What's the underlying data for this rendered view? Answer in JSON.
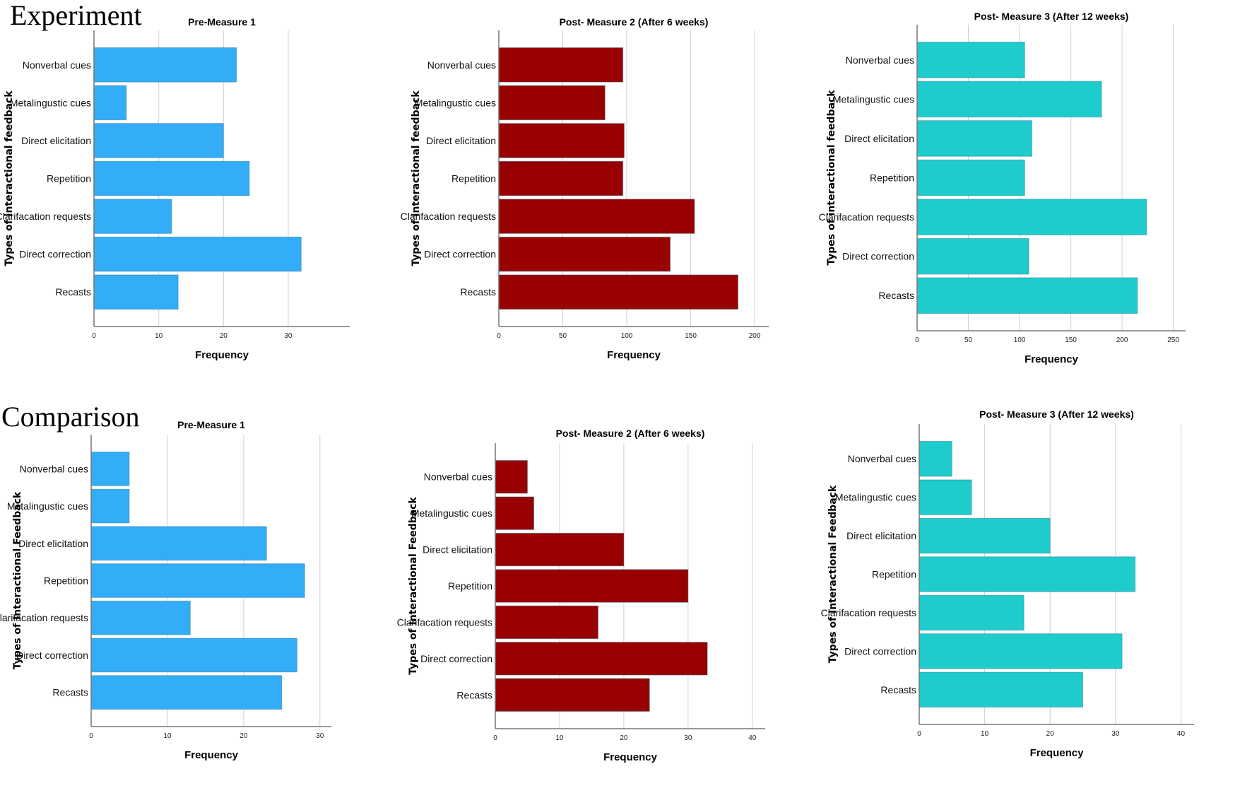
{
  "groups": {
    "experiment": "Experiment",
    "comparison": "Comparison"
  },
  "colors": {
    "pre": "#33adf8",
    "post2": "#990000",
    "post3": "#1fcccc",
    "grid": "#d0d0d0",
    "axis": "#777777"
  },
  "chart_data": [
    {
      "type": "bar",
      "orientation": "horizontal",
      "group": "Experiment",
      "title": "Pre-Measure 1",
      "xlabel": "Frequency",
      "ylabel": "Types of interactional feedback",
      "categories": [
        "Nonverbal cues",
        "Metalingustic cues",
        "Direct elicitation",
        "Repetition",
        "Clarifacation requests",
        "Direct correction",
        "Recasts"
      ],
      "values": [
        22,
        5,
        20,
        24,
        12,
        32,
        13
      ],
      "xlim": [
        0,
        39.5
      ],
      "ticks": [
        "0",
        "10",
        "20",
        "30"
      ],
      "tick_values": [
        0,
        10,
        20,
        30
      ],
      "grid": true,
      "color_key": "pre"
    },
    {
      "type": "bar",
      "orientation": "horizontal",
      "group": "Experiment",
      "title": "Post- Measure 2 (After 6 weeks)",
      "xlabel": "Frequency",
      "ylabel": "Types of interactional feedback",
      "categories": [
        "Nonverbal cues",
        "Metalingustic cues",
        "Direct elicitation",
        "Repetition",
        "Clarifacation requests",
        "Direct correction",
        "Recasts"
      ],
      "values": [
        97,
        83,
        98,
        97,
        153,
        134,
        187
      ],
      "xlim": [
        0,
        211
      ],
      "ticks": [
        "0",
        "50",
        "100",
        "150",
        "200"
      ],
      "tick_values": [
        0,
        50,
        100,
        150,
        200
      ],
      "grid": true,
      "color_key": "post2"
    },
    {
      "type": "bar",
      "orientation": "horizontal",
      "group": "Experiment",
      "title": "Post- Measure 3 (After 12 weeks)",
      "xlabel": "Frequency",
      "ylabel": "Types of interactional feedback",
      "categories": [
        "Nonverbal cues",
        "Metalingustic cues",
        "Direct elicitation",
        "Repetition",
        "Clarifacation requests",
        "Direct correction",
        "Recasts"
      ],
      "values": [
        105,
        180,
        112,
        105,
        224,
        109,
        215
      ],
      "xlim": [
        0,
        262
      ],
      "ticks": [
        "0",
        "50",
        "100",
        "150",
        "200",
        "250"
      ],
      "tick_values": [
        0,
        50,
        100,
        150,
        200,
        250
      ],
      "grid": true,
      "color_key": "post3"
    },
    {
      "type": "bar",
      "orientation": "horizontal",
      "group": "Comparison",
      "title": "Pre-Measure 1",
      "xlabel": "Frequency",
      "ylabel": "Types of Interactional Feedback",
      "categories": [
        "Nonverbal cues",
        "Metalingustic cues",
        "Direct elicitation",
        "Repetition",
        "Clarifacation requests",
        "Direct correction",
        "Recasts"
      ],
      "values": [
        5,
        5,
        23,
        28,
        13,
        27,
        25
      ],
      "xlim": [
        0,
        31.5
      ],
      "ticks": [
        "0",
        "10",
        "20",
        "30"
      ],
      "tick_values": [
        0,
        10,
        20,
        30
      ],
      "grid": true,
      "color_key": "pre"
    },
    {
      "type": "bar",
      "orientation": "horizontal",
      "group": "Comparison",
      "title": "Post- Measure 2 (After 6 weeks)",
      "xlabel": "Frequency",
      "ylabel": "Types of Interactional Feedback",
      "categories": [
        "Nonverbal cues",
        "Metalingustic cues",
        "Direct elicitation",
        "Repetition",
        "Clarifacation requests",
        "Direct correction",
        "Recasts"
      ],
      "values": [
        5,
        6,
        20,
        30,
        16,
        33,
        24
      ],
      "xlim": [
        0,
        42
      ],
      "ticks": [
        "0",
        "10",
        "20",
        "30",
        "40"
      ],
      "tick_values": [
        0,
        10,
        20,
        30,
        40
      ],
      "grid": true,
      "color_key": "post2"
    },
    {
      "type": "bar",
      "orientation": "horizontal",
      "group": "Comparison",
      "title": "Post- Measure 3 (After 12 weeks)",
      "xlabel": "Frequency",
      "ylabel": "Types of Interactional Feedback",
      "categories": [
        "Nonverbal cues",
        "Metalingustic cues",
        "Direct elicitation",
        "Repetition",
        "Clarifacation requests",
        "Direct correction",
        "Recasts"
      ],
      "values": [
        5,
        8,
        20,
        33,
        16,
        31,
        25
      ],
      "xlim": [
        0,
        42
      ],
      "ticks": [
        "0",
        "10",
        "20",
        "30",
        "40"
      ],
      "tick_values": [
        0,
        10,
        20,
        30,
        40
      ],
      "grid": true,
      "color_key": "post3"
    }
  ]
}
